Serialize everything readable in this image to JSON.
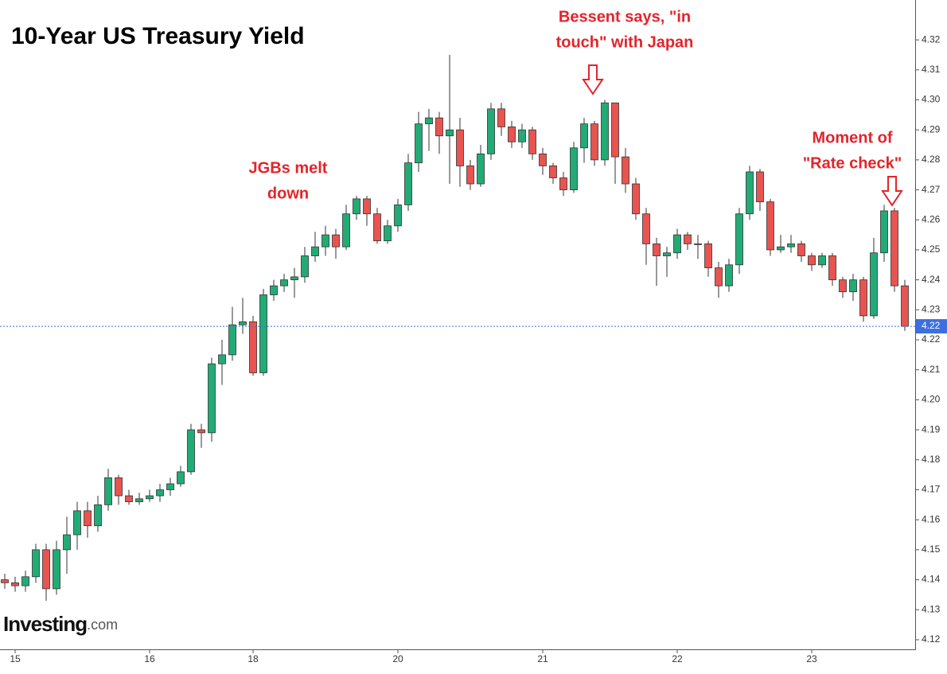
{
  "chart_data": {
    "type": "candlestick",
    "title": "10-Year US Treasury Yield",
    "brand": {
      "name": "Investing",
      "suffix": ".com"
    },
    "annotations": [
      {
        "lines": [
          "JGBs melt",
          "down"
        ]
      },
      {
        "lines": [
          "Bessent says, \"in",
          "touch\" with Japan"
        ]
      },
      {
        "lines": [
          "Moment of",
          "\"Rate check\""
        ]
      }
    ],
    "categories": [
      null,
      "15",
      null,
      null,
      null,
      null,
      null,
      null,
      null,
      null,
      null,
      null,
      null,
      null,
      "16",
      null,
      null,
      null,
      null,
      null,
      null,
      null,
      null,
      null,
      "18",
      null,
      null,
      null,
      null,
      null,
      null,
      null,
      null,
      null,
      null,
      null,
      null,
      null,
      "20",
      null,
      null,
      null,
      null,
      null,
      null,
      null,
      null,
      null,
      null,
      null,
      null,
      null,
      "21",
      null,
      null,
      null,
      null,
      null,
      null,
      null,
      null,
      null,
      null,
      null,
      null,
      "22",
      null,
      null,
      null,
      null,
      null,
      null,
      null,
      null,
      null,
      null,
      null,
      null,
      "23",
      null,
      null,
      null,
      null,
      null,
      null,
      null,
      null,
      null
    ],
    "open": [
      4.14,
      4.139,
      4.138,
      4.141,
      4.15,
      4.137,
      4.15,
      4.155,
      4.163,
      4.158,
      4.165,
      4.174,
      4.168,
      4.166,
      4.167,
      4.168,
      4.17,
      4.172,
      4.176,
      4.19,
      4.189,
      4.212,
      4.215,
      4.225,
      4.226,
      4.209,
      4.235,
      4.238,
      4.24,
      4.241,
      4.248,
      4.251,
      4.255,
      4.251,
      4.262,
      4.267,
      4.262,
      4.253,
      4.258,
      4.265,
      4.279,
      4.292,
      4.294,
      4.288,
      4.29,
      4.278,
      4.272,
      4.282,
      4.297,
      4.291,
      4.286,
      4.29,
      4.282,
      4.278,
      4.274,
      4.27,
      4.284,
      4.292,
      4.28,
      4.299,
      4.281,
      4.272,
      4.262,
      4.252,
      4.248,
      4.249,
      4.255,
      4.252,
      4.252,
      4.244,
      4.238,
      4.245,
      4.262,
      4.276,
      4.266,
      4.25,
      4.251,
      4.252,
      4.248,
      4.245,
      4.248,
      4.24,
      4.236,
      4.24,
      4.228,
      4.249,
      4.263,
      4.238
    ],
    "high": [
      4.142,
      4.141,
      4.143,
      4.152,
      4.152,
      4.153,
      4.161,
      4.166,
      4.166,
      4.168,
      4.177,
      4.175,
      4.17,
      4.169,
      4.17,
      4.172,
      4.174,
      4.178,
      4.192,
      4.192,
      4.214,
      4.22,
      4.231,
      4.234,
      4.228,
      4.237,
      4.24,
      4.242,
      4.244,
      4.251,
      4.256,
      4.258,
      4.257,
      4.265,
      4.268,
      4.268,
      4.264,
      4.26,
      4.267,
      4.282,
      4.296,
      4.297,
      4.296,
      4.315,
      4.294,
      4.28,
      4.285,
      4.299,
      4.299,
      4.293,
      4.292,
      4.291,
      4.284,
      4.279,
      4.276,
      4.286,
      4.294,
      4.293,
      4.3,
      4.299,
      4.284,
      4.274,
      4.264,
      4.254,
      4.251,
      4.257,
      4.256,
      4.255,
      4.253,
      4.246,
      4.247,
      4.264,
      4.278,
      4.277,
      4.267,
      4.255,
      4.255,
      4.253,
      4.249,
      4.249,
      4.249,
      4.241,
      4.242,
      4.241,
      4.254,
      4.265,
      4.264,
      4.24
    ],
    "low": [
      4.137,
      4.136,
      4.136,
      4.139,
      4.133,
      4.135,
      4.142,
      4.15,
      4.154,
      4.156,
      4.163,
      4.165,
      4.165,
      4.165,
      4.166,
      4.166,
      4.168,
      4.171,
      4.175,
      4.184,
      4.186,
      4.205,
      4.213,
      4.222,
      4.208,
      4.208,
      4.233,
      4.236,
      4.234,
      4.239,
      4.246,
      4.248,
      4.247,
      4.25,
      4.26,
      4.258,
      4.252,
      4.252,
      4.256,
      4.263,
      4.276,
      4.283,
      4.282,
      4.272,
      4.271,
      4.27,
      4.271,
      4.28,
      4.288,
      4.284,
      4.284,
      4.28,
      4.275,
      4.272,
      4.268,
      4.269,
      4.279,
      4.278,
      4.278,
      4.272,
      4.269,
      4.26,
      4.245,
      4.238,
      4.241,
      4.247,
      4.25,
      4.247,
      4.241,
      4.234,
      4.236,
      4.242,
      4.26,
      4.263,
      4.248,
      4.249,
      4.249,
      4.246,
      4.243,
      4.244,
      4.238,
      4.234,
      4.233,
      4.226,
      4.227,
      4.246,
      4.236,
      4.223
    ],
    "close": [
      4.139,
      4.138,
      4.141,
      4.15,
      4.137,
      4.15,
      4.155,
      4.163,
      4.158,
      4.165,
      4.174,
      4.168,
      4.166,
      4.167,
      4.168,
      4.17,
      4.172,
      4.176,
      4.19,
      4.189,
      4.212,
      4.215,
      4.225,
      4.226,
      4.209,
      4.235,
      4.238,
      4.24,
      4.241,
      4.248,
      4.251,
      4.255,
      4.251,
      4.262,
      4.267,
      4.262,
      4.253,
      4.258,
      4.265,
      4.279,
      4.292,
      4.294,
      4.288,
      4.29,
      4.278,
      4.272,
      4.282,
      4.297,
      4.291,
      4.286,
      4.29,
      4.282,
      4.278,
      4.274,
      4.27,
      4.284,
      4.292,
      4.28,
      4.299,
      4.281,
      4.272,
      4.262,
      4.252,
      4.248,
      4.249,
      4.255,
      4.252,
      4.252,
      4.244,
      4.238,
      4.245,
      4.262,
      4.276,
      4.266,
      4.25,
      4.251,
      4.252,
      4.248,
      4.245,
      4.248,
      4.24,
      4.236,
      4.24,
      4.228,
      4.249,
      4.263,
      4.238,
      4.2245
    ],
    "last_price_label": "4.22",
    "up_color": "#22ab76",
    "down_color": "#e85450",
    "ylim": [
      4.1168,
      4.3333
    ],
    "yticks": [
      4.12,
      4.13,
      4.14,
      4.15,
      4.16,
      4.17,
      4.18,
      4.19,
      {
        "value": 4.2,
        "label": "4.20"
      },
      4.21,
      4.22,
      4.23,
      4.24,
      4.25,
      4.26,
      4.27,
      4.28,
      4.29,
      {
        "value": 4.3,
        "label": "4.30"
      },
      4.31,
      4.32
    ]
  }
}
